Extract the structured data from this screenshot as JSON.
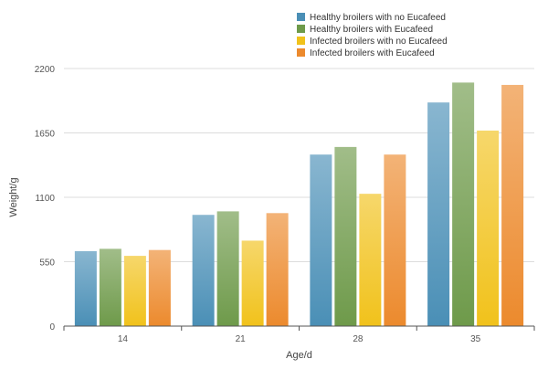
{
  "chart_data": {
    "type": "bar",
    "title": "",
    "xlabel": "Age/d",
    "ylabel": "Weight/g",
    "categories": [
      "14",
      "21",
      "28",
      "35"
    ],
    "ylim": [
      0,
      2200
    ],
    "yticks": [
      "0",
      "550",
      "1100",
      "1650",
      "2200"
    ],
    "grid": true,
    "legend_position": "top-right",
    "series": [
      {
        "name": "Healthy broilers with no Eucafeed",
        "values": [
          640,
          950,
          1465,
          1910
        ],
        "color": "#4a8fb6"
      },
      {
        "name": "Healthy broilers with Eucafeed",
        "values": [
          660,
          980,
          1530,
          2080
        ],
        "color": "#6e9a4a"
      },
      {
        "name": "Infected broilers with no Eucafeed",
        "values": [
          600,
          730,
          1130,
          1670
        ],
        "color": "#f1c21b"
      },
      {
        "name": "Infected broilers with Eucafeed",
        "values": [
          650,
          965,
          1465,
          2060
        ],
        "color": "#ec8a2d"
      }
    ]
  }
}
